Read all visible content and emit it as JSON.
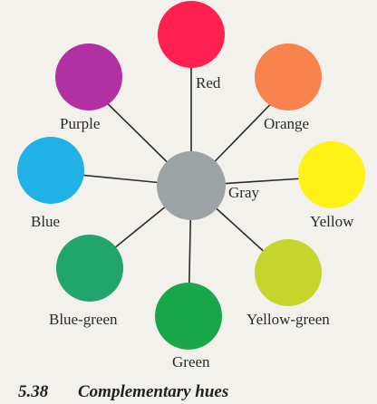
{
  "center": {
    "label": "Gray",
    "color": "#9ea3a6"
  },
  "hues": [
    {
      "id": "red",
      "label": "Red",
      "color": "#ff2050"
    },
    {
      "id": "orange",
      "label": "Orange",
      "color": "#f8824d"
    },
    {
      "id": "yellow",
      "label": "Yellow",
      "color": "#fef216"
    },
    {
      "id": "yellow-green",
      "label": "Yellow-green",
      "color": "#c4d52d"
    },
    {
      "id": "green",
      "label": "Green",
      "color": "#1aa64b"
    },
    {
      "id": "blue-green",
      "label": "Blue-green",
      "color": "#21a56b"
    },
    {
      "id": "blue",
      "label": "Blue",
      "color": "#20b1e5"
    },
    {
      "id": "purple",
      "label": "Purple",
      "color": "#b231a2"
    }
  ],
  "caption": {
    "number": "5.38",
    "title": "Complementary hues"
  }
}
